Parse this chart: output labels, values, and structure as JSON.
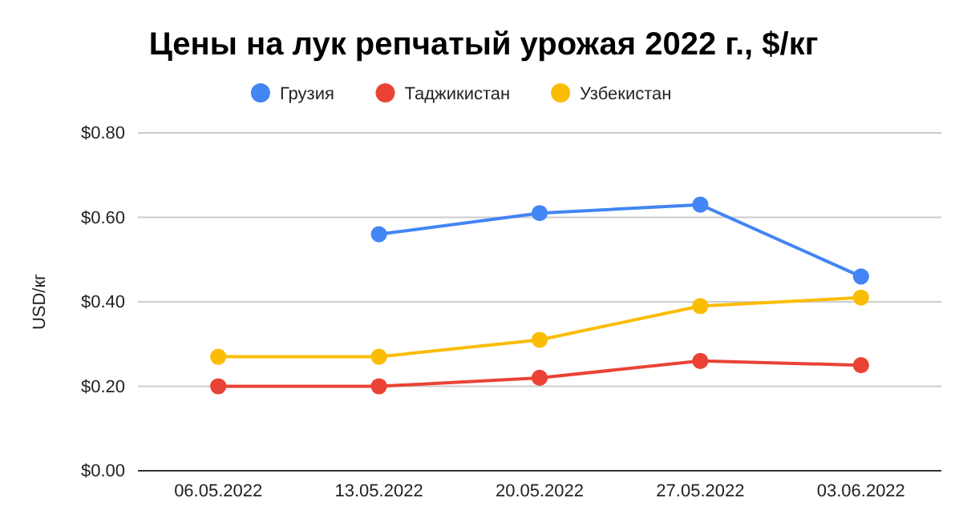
{
  "chart_data": {
    "type": "line",
    "title": "Цены на лук репчатый урожая 2022 г., $/кг",
    "ylabel": "USD/кг",
    "categories": [
      "06.05.2022",
      "13.05.2022",
      "20.05.2022",
      "27.05.2022",
      "03.06.2022"
    ],
    "series": [
      {
        "name": "Грузия",
        "color": "#4285f4",
        "values": [
          null,
          0.56,
          0.61,
          0.63,
          0.46
        ]
      },
      {
        "name": "Таджикистан",
        "color": "#ea4335",
        "values": [
          0.2,
          0.2,
          0.22,
          0.26,
          0.25
        ]
      },
      {
        "name": "Узбекистан",
        "color": "#fbbc04",
        "values": [
          0.27,
          0.27,
          0.31,
          0.39,
          0.41
        ]
      }
    ],
    "ylim": [
      0,
      0.8
    ],
    "yticks": [
      {
        "value": 0,
        "label": "$0.00"
      },
      {
        "value": 0.2,
        "label": "$0.20"
      },
      {
        "value": 0.4,
        "label": "$0.40"
      },
      {
        "value": 0.6,
        "label": "$0.60"
      },
      {
        "value": 0.8,
        "label": "$0.80"
      }
    ],
    "grid": "y",
    "legend": "top",
    "marker": "circle",
    "line_style": "solid"
  }
}
